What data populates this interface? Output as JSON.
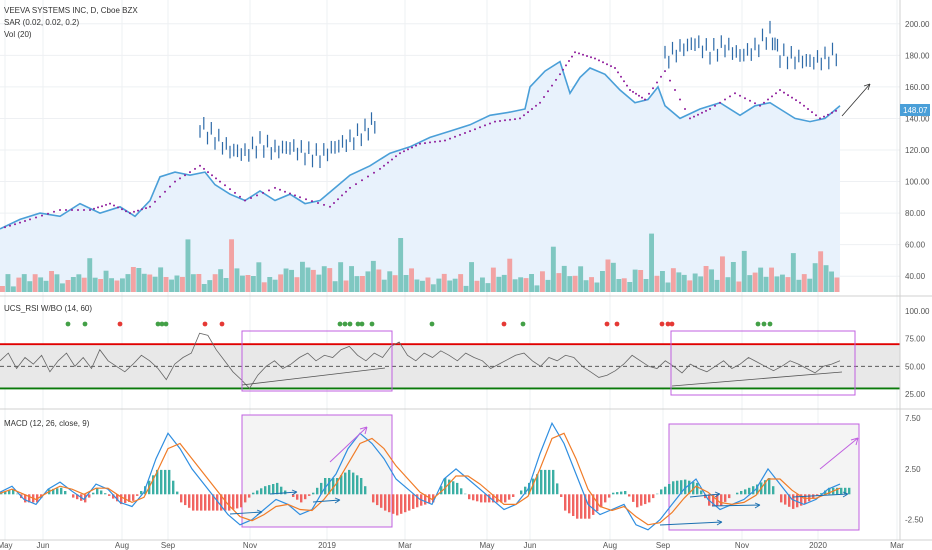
{
  "header": {
    "symbol_line": "VEEVA SYSTEMS INC, D, Cboe BZX",
    "sar_line": "SAR (0.02, 0.02, 0.2)",
    "vol_line": "Vol (20)"
  },
  "rsi_panel": {
    "label": "UCS_RSI W/BO (14, 60)"
  },
  "macd_panel": {
    "label": "MACD (12, 26, close, 9)"
  },
  "last_price_label": "148.07",
  "colors": {
    "price_line": "#4a9fd8",
    "price_fill": "#e8f2fc",
    "sar_dots": "#8e1a9b",
    "vol_up": "#7fc7c1",
    "vol_down": "#f2a3a3",
    "bars": "#2d6aa8",
    "rsi_upper": "#e00000",
    "rsi_lower": "#0a7a0a",
    "macd_line": "#2f8ee0",
    "signal_line": "#f07c28",
    "hist_pos": "#26a69a",
    "hist_neg": "#ef5350",
    "box": "#c060e0"
  },
  "chart_data": [
    {
      "type": "line",
      "panel": "price",
      "ylim": [
        30,
        210
      ],
      "price_axis": [
        "200.00",
        "180.00",
        "160.00",
        "140.00",
        "120.00",
        "100.00",
        "80.00",
        "60.00",
        "40.00"
      ],
      "price_axis_values": [
        200,
        180,
        160,
        140,
        120,
        100,
        80,
        60,
        40
      ],
      "x_ticks": [
        "May",
        "Jun",
        "Aug",
        "Sep",
        "Nov",
        "2019",
        "Mar",
        "May",
        "Jun",
        "Aug",
        "Sep",
        "Nov",
        "2020",
        "Mar"
      ],
      "x_tick_pos": [
        5,
        43,
        122,
        168,
        250,
        327,
        405,
        487,
        530,
        610,
        663,
        742,
        818,
        897
      ],
      "series": [
        {
          "kind": "close",
          "points": [
            [
              0,
              70
            ],
            [
              20,
              76
            ],
            [
              40,
              80
            ],
            [
              60,
              78
            ],
            [
              80,
              86
            ],
            [
              100,
              80
            ],
            [
              120,
              84
            ],
            [
              135,
              78
            ],
            [
              150,
              88
            ],
            [
              160,
              103
            ],
            [
              175,
              106
            ],
            [
              190,
              104
            ],
            [
              205,
              106
            ],
            [
              215,
              98
            ],
            [
              230,
              92
            ],
            [
              245,
              88
            ],
            [
              260,
              94
            ],
            [
              275,
              88
            ],
            [
              290,
              92
            ],
            [
              305,
              86
            ],
            [
              320,
              88
            ],
            [
              335,
              96
            ],
            [
              350,
              104
            ],
            [
              370,
              110
            ],
            [
              390,
              118
            ],
            [
              410,
              122
            ],
            [
              430,
              128
            ],
            [
              450,
              132
            ],
            [
              470,
              136
            ],
            [
              490,
              142
            ],
            [
              510,
              144
            ],
            [
              525,
              146
            ],
            [
              530,
              160
            ],
            [
              545,
              170
            ],
            [
              560,
              176
            ],
            [
              570,
              156
            ],
            [
              580,
              166
            ],
            [
              590,
              172
            ],
            [
              605,
              168
            ],
            [
              620,
              158
            ],
            [
              635,
              150
            ],
            [
              648,
              152
            ],
            [
              658,
              160
            ],
            [
              665,
              148
            ],
            [
              680,
              140
            ],
            [
              700,
              146
            ],
            [
              720,
              150
            ],
            [
              740,
              142
            ],
            [
              755,
              148
            ],
            [
              770,
              150
            ],
            [
              780,
              146
            ],
            [
              795,
              140
            ],
            [
              810,
              138
            ],
            [
              825,
              140
            ],
            [
              840,
              148
            ]
          ]
        },
        {
          "kind": "sar",
          "points": [
            [
              5,
              71
            ],
            [
              30,
              76
            ],
            [
              60,
              82
            ],
            [
              90,
              82
            ],
            [
              110,
              86
            ],
            [
              130,
              80
            ],
            [
              150,
              84
            ],
            [
              175,
              100
            ],
            [
              200,
              110
            ],
            [
              220,
              100
            ],
            [
              245,
              88
            ],
            [
              275,
              96
            ],
            [
              300,
              90
            ],
            [
              330,
              84
            ],
            [
              350,
              96
            ],
            [
              380,
              108
            ],
            [
              400,
              118
            ],
            [
              420,
              124
            ],
            [
              445,
              126
            ],
            [
              470,
              132
            ],
            [
              495,
              138
            ],
            [
              520,
              140
            ],
            [
              540,
              150
            ],
            [
              560,
              168
            ],
            [
              575,
              182
            ],
            [
              595,
              178
            ],
            [
              615,
              172
            ],
            [
              630,
              158
            ],
            [
              645,
              152
            ],
            [
              665,
              170
            ],
            [
              690,
              140
            ],
            [
              710,
              146
            ],
            [
              735,
              156
            ],
            [
              760,
              148
            ],
            [
              780,
              158
            ],
            [
              800,
              150
            ],
            [
              820,
              140
            ],
            [
              840,
              146
            ]
          ]
        },
        {
          "kind": "bar_overlay_1",
          "points": [
            [
              200,
              135
            ],
            [
              215,
              128
            ],
            [
              230,
              120
            ],
            [
              245,
              118
            ],
            [
              260,
              124
            ],
            [
              275,
              120
            ],
            [
              290,
              122
            ],
            [
              305,
              118
            ],
            [
              320,
              116
            ],
            [
              335,
              122
            ],
            [
              350,
              126
            ],
            [
              365,
              132
            ],
            [
              378,
              140
            ]
          ]
        },
        {
          "kind": "bar_overlay_2",
          "points": [
            [
              665,
              178
            ],
            [
              680,
              184
            ],
            [
              695,
              188
            ],
            [
              710,
              182
            ],
            [
              725,
              186
            ],
            [
              740,
              180
            ],
            [
              755,
              184
            ],
            [
              770,
              194
            ],
            [
              780,
              180
            ],
            [
              795,
              178
            ],
            [
              810,
              176
            ],
            [
              825,
              178
            ],
            [
              840,
              182
            ]
          ]
        }
      ]
    },
    {
      "type": "bar",
      "panel": "volume",
      "note_values": "relative volume 0-1",
      "values": [
        0.2,
        0.3,
        0.15,
        0.25,
        0.4,
        0.2,
        0.35,
        0.3,
        0.2,
        0.5,
        0.3,
        0.25,
        0.2,
        0.45,
        0.3,
        0.35,
        0.6,
        0.3,
        0.25,
        0.4,
        0.3,
        0.2,
        0.35,
        0.3,
        0.8,
        0.4,
        0.5,
        0.3,
        0.35,
        0.45,
        0.3,
        0.25,
        0.3,
        0.35,
        0.9,
        0.5,
        0.3,
        0.25,
        0.2,
        0.45,
        0.4,
        0.3,
        1.0,
        0.45,
        0.35,
        0.3,
        0.4,
        0.5,
        0.3,
        0.25,
        0.35,
        0.3,
        0.55,
        0.4,
        0.3,
        0.6,
        0.45,
        0.5,
        0.3,
        0.7,
        0.4,
        0.35,
        0.5,
        0.3,
        0.45,
        0.35,
        0.3,
        0.4,
        0.65,
        0.4,
        0.3,
        0.35,
        0.5,
        0.9,
        0.5,
        0.4,
        0.3
      ]
    },
    {
      "type": "line",
      "panel": "rsi",
      "ylim": [
        15,
        110
      ],
      "axis": [
        "100.00",
        "75.00",
        "50.00",
        "25.00"
      ],
      "axis_values": [
        100,
        75,
        50,
        25
      ],
      "upper_band": 70,
      "lower_band": 30,
      "mid_band": 50,
      "values": [
        55,
        62,
        48,
        58,
        52,
        60,
        45,
        55,
        62,
        50,
        58,
        48,
        65,
        55,
        50,
        45,
        52,
        60,
        55,
        48,
        38,
        52,
        58,
        62,
        80,
        78,
        65,
        55,
        45,
        38,
        30,
        42,
        50,
        55,
        48,
        52,
        58,
        62,
        55,
        60,
        58,
        65,
        68,
        60,
        55,
        62,
        58,
        68,
        72,
        60,
        55,
        62,
        58,
        64,
        60,
        55,
        62,
        58,
        55,
        48,
        52,
        56,
        60,
        62,
        55,
        50,
        58,
        55,
        60,
        58,
        50,
        45,
        40,
        42,
        46,
        52,
        60,
        55,
        50,
        48,
        55,
        50,
        44,
        52,
        48,
        45,
        50,
        55,
        48,
        52,
        58,
        54,
        50,
        46,
        50,
        55,
        52,
        48,
        44,
        50,
        52,
        55
      ],
      "signal_markers": {
        "green_x": [
          68,
          85,
          158,
          162,
          166,
          340,
          345,
          350,
          358,
          362,
          372,
          432,
          523,
          758,
          764,
          770
        ],
        "red_x": [
          120,
          205,
          222,
          504,
          607,
          617,
          662,
          668,
          672
        ]
      }
    },
    {
      "type": "line",
      "panel": "macd",
      "ylim": [
        -4.5,
        8.0
      ],
      "axis": [
        "7.50",
        "2.50",
        "-2.50"
      ],
      "axis_values": [
        7.5,
        2.5,
        -2.5
      ],
      "macd": [
        0.2,
        0.8,
        -0.5,
        -1.0,
        0.5,
        1.2,
        0.3,
        -0.5,
        1.0,
        0.5,
        -0.8,
        -1.2,
        0.2,
        3.5,
        6.0,
        4.5,
        2.5,
        1.0,
        -0.5,
        -2.0,
        -3.0,
        -2.5,
        -1.5,
        -0.5,
        -1.0,
        -2.0,
        -1.5,
        0.5,
        2.0,
        4.5,
        6.0,
        5.0,
        3.5,
        1.5,
        0.5,
        -0.5,
        -1.0,
        1.5,
        2.5,
        1.5,
        0.5,
        -0.5,
        -1.5,
        -1.0,
        0.5,
        4.0,
        7.0,
        5.0,
        2.0,
        -1.0,
        -2.0,
        -1.5,
        -1.0,
        -3.0,
        -3.5,
        -2.5,
        -1.0,
        0.5,
        1.5,
        -0.5,
        -1.5,
        -1.0,
        -0.5,
        0.5,
        2.5,
        1.0,
        -0.5,
        -1.0,
        -0.5,
        0.5,
        1.0
      ],
      "signal": [
        0.1,
        0.5,
        0.0,
        -0.5,
        0.2,
        0.8,
        0.5,
        0.0,
        0.6,
        0.6,
        -0.2,
        -0.8,
        -0.3,
        2.0,
        4.5,
        5.0,
        3.5,
        2.0,
        0.5,
        -1.0,
        -2.2,
        -2.6,
        -2.0,
        -1.2,
        -1.0,
        -1.5,
        -1.6,
        -0.5,
        1.0,
        3.0,
        5.0,
        5.5,
        4.5,
        2.8,
        1.5,
        0.2,
        -0.5,
        0.5,
        1.8,
        1.8,
        1.0,
        0.0,
        -1.0,
        -1.0,
        -0.2,
        2.5,
        5.5,
        6.0,
        3.5,
        0.5,
        -1.2,
        -1.6,
        -1.2,
        -2.2,
        -3.0,
        -2.8,
        -1.8,
        -0.4,
        0.8,
        0.2,
        -0.8,
        -1.0,
        -0.8,
        -0.1,
        1.5,
        1.5,
        0.4,
        -0.4,
        -0.4,
        0.1,
        0.6
      ]
    }
  ]
}
